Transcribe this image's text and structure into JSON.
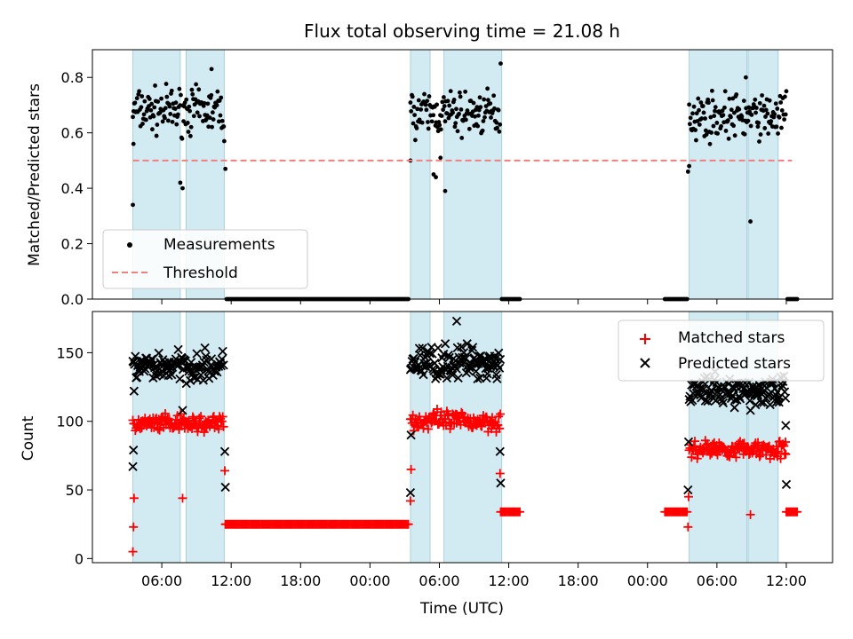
{
  "figure": {
    "title": "Flux total observing time = 21.08 h"
  },
  "chart_data": [
    {
      "type": "scatter",
      "ylabel": "Matched/Predicted stars",
      "xlabel": "",
      "ylim": [
        0,
        0.9
      ],
      "yticks": [
        0.0,
        0.2,
        0.4,
        0.6,
        0.8
      ],
      "ytick_labels": [
        "0.0",
        "0.2",
        "0.4",
        "0.6",
        "0.8"
      ],
      "legend": {
        "placement": "lower-left",
        "entries": [
          "Measurements",
          "Threshold"
        ]
      },
      "threshold": 0.5,
      "threshold_range": [
        3.5,
        60.5
      ],
      "threshold_color": "#f08080",
      "series_color": "#000000",
      "band_color": "#add8e6",
      "segments": [
        {
          "x": [
            3.5,
            11.4
          ],
          "type": "ratio",
          "mean": 0.68,
          "noise": 0.06
        },
        {
          "x": [
            11.6,
            27.4
          ],
          "type": "zeros"
        },
        {
          "x": [
            27.5,
            35.3
          ],
          "type": "ratio",
          "mean": 0.67,
          "noise": 0.06
        },
        {
          "x": [
            35.4,
            37.0
          ],
          "type": "zeros"
        },
        {
          "x": [
            49.5,
            51.5
          ],
          "type": "zeros"
        },
        {
          "x": [
            51.6,
            60.0
          ],
          "type": "ratio",
          "mean": 0.66,
          "noise": 0.06
        },
        {
          "x": [
            60.1,
            61.0
          ],
          "type": "zeros"
        }
      ],
      "outliers": [
        {
          "x": 3.5,
          "y": 0.34
        },
        {
          "x": 3.55,
          "y": 0.56
        },
        {
          "x": 7.6,
          "y": 0.42
        },
        {
          "x": 7.8,
          "y": 0.4
        },
        {
          "x": 10.3,
          "y": 0.83
        },
        {
          "x": 11.5,
          "y": 0.47
        },
        {
          "x": 11.4,
          "y": 0.57
        },
        {
          "x": 27.5,
          "y": 0.5
        },
        {
          "x": 29.5,
          "y": 0.45
        },
        {
          "x": 29.7,
          "y": 0.44
        },
        {
          "x": 30.1,
          "y": 0.51
        },
        {
          "x": 30.5,
          "y": 0.39
        },
        {
          "x": 35.3,
          "y": 0.85
        },
        {
          "x": 51.5,
          "y": 0.46
        },
        {
          "x": 51.6,
          "y": 0.48
        },
        {
          "x": 56.5,
          "y": 0.8
        },
        {
          "x": 56.9,
          "y": 0.28
        },
        {
          "x": 60.0,
          "y": 0.75
        }
      ],
      "bands": [
        [
          3.5,
          7.6
        ],
        [
          8.1,
          11.4
        ],
        [
          27.5,
          29.2
        ],
        [
          30.4,
          35.4
        ],
        [
          51.6,
          56.6
        ],
        [
          56.7,
          59.3
        ]
      ]
    },
    {
      "type": "scatter",
      "xlabel": "Time (UTC)",
      "ylabel": "Count",
      "ylim": [
        -3,
        180
      ],
      "xlim": [
        0,
        64
      ],
      "yticks": [
        0,
        50,
        100,
        150
      ],
      "ytick_labels": [
        "0",
        "50",
        "100",
        "150"
      ],
      "xticks": [
        6,
        12,
        18,
        24,
        30,
        36,
        42,
        48,
        54,
        60
      ],
      "xtick_labels": [
        "06:00",
        "12:00",
        "18:00",
        "00:00",
        "06:00",
        "12:00",
        "18:00",
        "00:00",
        "06:00",
        "12:00"
      ],
      "legend": {
        "placement": "upper-right",
        "entries": [
          "Matched stars",
          "Predicted stars"
        ]
      },
      "series": [
        {
          "name": "Matched stars",
          "marker": "+",
          "color": "#ff0000"
        },
        {
          "name": "Predicted stars",
          "marker": "x",
          "color": "#000000"
        }
      ],
      "segments": [
        {
          "x": [
            3.5,
            11.4
          ],
          "matched_mean": 98,
          "predicted_mean": 140,
          "noise": 8
        },
        {
          "x": [
            11.6,
            27.4
          ],
          "matched_mean": 25,
          "predicted_mean": null,
          "noise": 0
        },
        {
          "x": [
            27.5,
            35.3
          ],
          "matched_mean": 100,
          "predicted_mean": 143,
          "noise": 9
        },
        {
          "x": [
            35.4,
            37.0
          ],
          "matched_mean": 34,
          "predicted_mean": null,
          "noise": 0
        },
        {
          "x": [
            49.5,
            51.5
          ],
          "matched_mean": 34,
          "predicted_mean": null,
          "noise": 0
        },
        {
          "x": [
            51.6,
            60.0
          ],
          "matched_mean": 80,
          "predicted_mean": 122,
          "noise": 8
        },
        {
          "x": [
            60.1,
            61.0
          ],
          "matched_mean": 34,
          "predicted_mean": null,
          "noise": 0
        }
      ],
      "edge_points": [
        {
          "x": 3.5,
          "matched": 5,
          "predicted": 67
        },
        {
          "x": 3.55,
          "matched": 23,
          "predicted": 79
        },
        {
          "x": 3.6,
          "matched": 44,
          "predicted": 122
        },
        {
          "x": 11.5,
          "matched": 25,
          "predicted": 52
        },
        {
          "x": 11.45,
          "matched": 64,
          "predicted": 78
        },
        {
          "x": 27.5,
          "matched": 42,
          "predicted": 48
        },
        {
          "x": 27.55,
          "matched": 65,
          "predicted": 90
        },
        {
          "x": 35.3,
          "matched": 34,
          "predicted": 55
        },
        {
          "x": 35.25,
          "matched": 62,
          "predicted": 78
        },
        {
          "x": 51.5,
          "matched": 23,
          "predicted": 50
        },
        {
          "x": 51.55,
          "matched": 45,
          "predicted": 85
        },
        {
          "x": 60.0,
          "matched": 34,
          "predicted": 54
        },
        {
          "x": 59.95,
          "matched": 76,
          "predicted": 97
        },
        {
          "x": 7.8,
          "matched": 44,
          "predicted": 108
        },
        {
          "x": 56.9,
          "matched": 32,
          "predicted": 108
        },
        {
          "x": 31.5,
          "matched": 105,
          "predicted": 173
        }
      ],
      "bands": [
        [
          3.5,
          7.6
        ],
        [
          8.1,
          11.4
        ],
        [
          27.5,
          29.2
        ],
        [
          30.4,
          35.4
        ],
        [
          51.6,
          56.6
        ],
        [
          56.7,
          59.3
        ]
      ]
    }
  ]
}
